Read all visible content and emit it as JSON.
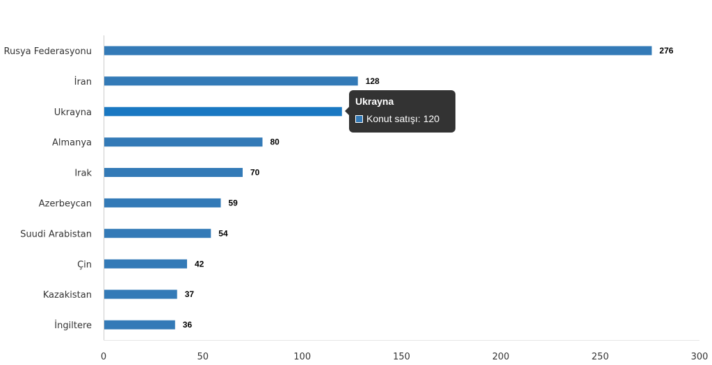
{
  "chart_data": {
    "type": "bar",
    "orientation": "horizontal",
    "categories": [
      "Rusya Federasyonu",
      "İran",
      "Ukrayna",
      "Almanya",
      "Irak",
      "Azerbeycan",
      "Suudi Arabistan",
      "Çin",
      "Kazakistan",
      "İngiltere"
    ],
    "series": [
      {
        "name": "Konut satışı",
        "values": [
          276,
          128,
          120,
          80,
          70,
          59,
          54,
          42,
          37,
          36
        ],
        "color": "#337ab7"
      }
    ],
    "xlim": [
      0,
      300
    ],
    "x_ticks": [
      "0",
      "50",
      "100",
      "150",
      "200",
      "250",
      "300"
    ],
    "grid": false,
    "legend": "none",
    "highlight_color": "#1a78c2",
    "highlighted_category": "Ukrayna"
  },
  "tooltip": {
    "title": "Ukrayna",
    "series_label": "Konut satışı: 120",
    "swatch_color": "#337ab7"
  }
}
